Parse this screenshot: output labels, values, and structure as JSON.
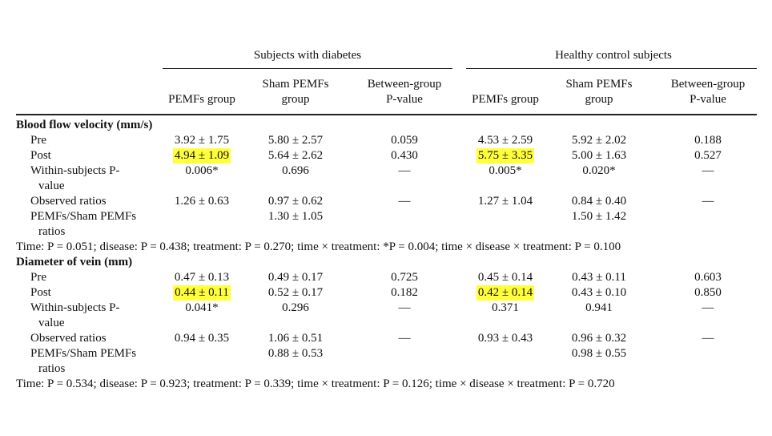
{
  "group_headers": [
    "Subjects with diabetes",
    "Healthy control subjects"
  ],
  "column_headers": [
    [
      "PEMFs group"
    ],
    [
      "Sham PEMFs",
      "group"
    ],
    [
      "Between-group",
      "P-value"
    ],
    [
      "PEMFs group"
    ],
    [
      "Sham PEMFs",
      "group"
    ],
    [
      "Between-group",
      "P-value"
    ]
  ],
  "highlight_color": "#ffff3c",
  "sections": [
    {
      "title": "Blood flow velocity (mm/s)",
      "rows": [
        {
          "label": [
            "Pre"
          ],
          "cells": [
            "3.92 ± 1.75",
            "5.80 ± 2.57",
            "0.059",
            "4.53 ± 2.59",
            "5.92 ± 2.02",
            "0.188"
          ]
        },
        {
          "label": [
            "Post"
          ],
          "cells": [
            "4.94 ± 1.09",
            "5.64 ± 2.62",
            "0.430",
            "5.75 ± 3.35",
            "5.00 ± 1.63",
            "0.527"
          ],
          "highlight": [
            0,
            3
          ]
        },
        {
          "label": [
            "Within-subjects P-",
            "value"
          ],
          "cells": [
            "0.006*",
            "0.696",
            "—",
            "0.005*",
            "0.020*",
            "—"
          ]
        },
        {
          "label": [
            "Observed ratios"
          ],
          "cells": [
            "1.26 ± 0.63",
            "0.97 ± 0.62",
            "—",
            "1.27 ± 1.04",
            "0.84 ± 0.40",
            "—"
          ]
        },
        {
          "label": [
            "PEMFs/Sham PEMFs",
            "ratios"
          ],
          "cells": [
            "",
            "1.30 ± 1.05",
            "",
            "",
            "1.50 ± 1.42",
            ""
          ]
        }
      ],
      "footnote": "Time: P = 0.051; disease: P = 0.438; treatment: P = 0.270; time × treatment: *P = 0.004; time × disease × treatment: P = 0.100"
    },
    {
      "title": "Diameter of vein (mm)",
      "rows": [
        {
          "label": [
            "Pre"
          ],
          "cells": [
            "0.47 ± 0.13",
            "0.49 ± 0.17",
            "0.725",
            "0.45 ± 0.14",
            "0.43 ± 0.11",
            "0.603"
          ]
        },
        {
          "label": [
            "Post"
          ],
          "cells": [
            "0.44 ± 0.11",
            "0.52 ± 0.17",
            "0.182",
            "0.42 ± 0.14",
            "0.43 ± 0.10",
            "0.850"
          ],
          "highlight": [
            0,
            3
          ]
        },
        {
          "label": [
            "Within-subjects P-",
            "value"
          ],
          "cells": [
            "0.041*",
            "0.296",
            "—",
            "0.371",
            "0.941",
            "—"
          ]
        },
        {
          "label": [
            "Observed ratios"
          ],
          "cells": [
            "0.94 ± 0.35",
            "1.06 ± 0.51",
            "—",
            "0.93 ± 0.43",
            "0.96 ± 0.32",
            "—"
          ]
        },
        {
          "label": [
            "PEMFs/Sham PEMFs",
            "ratios"
          ],
          "cells": [
            "",
            "0.88 ± 0.53",
            "",
            "",
            "0.98 ± 0.55",
            ""
          ]
        }
      ],
      "footnote": "Time: P = 0.534; disease: P = 0.923; treatment: P = 0.339; time × treatment: P = 0.126; time × disease × treatment: P = 0.720"
    }
  ]
}
